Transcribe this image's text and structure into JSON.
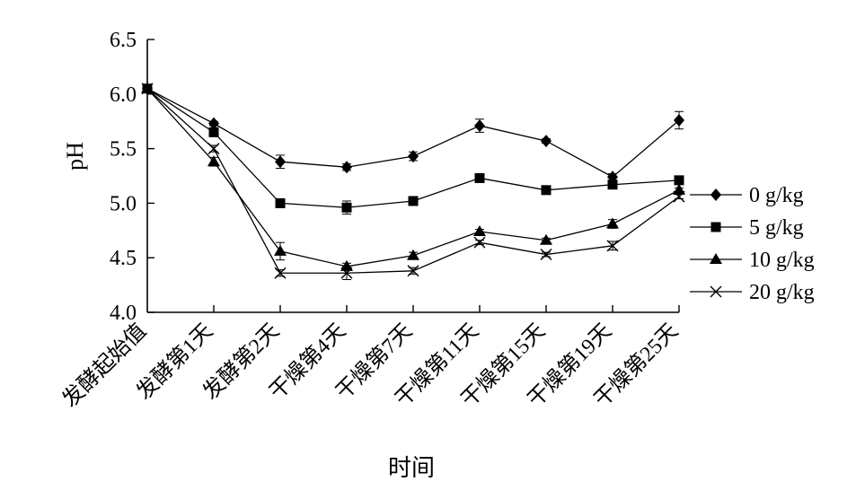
{
  "chart_data": {
    "type": "line",
    "title": "",
    "xlabel": "时间",
    "ylabel": "pH",
    "ylim": [
      4.0,
      6.5
    ],
    "yticks": [
      "4.0",
      "4.5",
      "5.0",
      "5.5",
      "6.0",
      "6.5"
    ],
    "grid": false,
    "legend_position": "right",
    "categories": [
      "发酵起始值",
      "发酵第1天",
      "发酵第2天",
      "干燥第4天",
      "干燥第7天",
      "干燥第11天",
      "干燥第15天",
      "干燥第19天",
      "干燥第25天"
    ],
    "series": [
      {
        "name": "0 g/kg",
        "marker": "diamond",
        "values": [
          6.05,
          5.73,
          5.38,
          5.33,
          5.43,
          5.71,
          5.57,
          5.24,
          5.76
        ],
        "errors": [
          0.03,
          0.02,
          0.06,
          0.03,
          0.04,
          0.06,
          0.02,
          0.03,
          0.08
        ]
      },
      {
        "name": "5 g/kg",
        "marker": "square",
        "values": [
          6.05,
          5.65,
          5.0,
          4.96,
          5.02,
          5.23,
          5.12,
          5.17,
          5.21
        ],
        "errors": [
          0.03,
          0.03,
          0.04,
          0.06,
          0.02,
          0.02,
          0.02,
          0.03,
          0.02
        ]
      },
      {
        "name": "10 g/kg",
        "marker": "triangle",
        "values": [
          6.05,
          5.38,
          4.56,
          4.42,
          4.52,
          4.74,
          4.66,
          4.81,
          5.12
        ],
        "errors": [
          0.03,
          0.04,
          0.08,
          0.03,
          0.03,
          0.02,
          0.02,
          0.04,
          0.02
        ]
      },
      {
        "name": "20 g/kg",
        "marker": "cross",
        "values": [
          6.05,
          5.5,
          4.36,
          4.36,
          4.38,
          4.64,
          4.53,
          4.61,
          5.06
        ],
        "errors": [
          0.03,
          0.03,
          0.03,
          0.06,
          0.03,
          0.02,
          0.02,
          0.04,
          0.02
        ]
      }
    ]
  }
}
